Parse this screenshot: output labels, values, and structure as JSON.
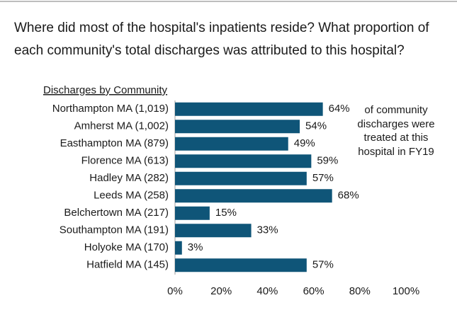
{
  "chart_data": {
    "type": "bar",
    "orientation": "horizontal",
    "title": "Where did most of the hospital's inpatients reside? What proportion of each community's total discharges was attributed to this hospital?",
    "axis_label": "Discharges by Community",
    "annotation": "of community discharges were treated at this hospital in FY19",
    "categories": [
      "Northampton MA (1,019)",
      "Amherst MA (1,002)",
      "Easthampton MA (879)",
      "Florence MA (613)",
      "Hadley MA (282)",
      "Leeds MA (258)",
      "Belchertown MA (217)",
      "Southampton MA (191)",
      "Holyoke MA (170)",
      "Hatfield MA (145)"
    ],
    "values": [
      64,
      54,
      49,
      59,
      57,
      68,
      15,
      33,
      3,
      57
    ],
    "value_labels": [
      "64%",
      "54%",
      "49%",
      "59%",
      "57%",
      "68%",
      "15%",
      "33%",
      "3%",
      "57%"
    ],
    "color": "#0f5578",
    "xlim": [
      0,
      100
    ],
    "xticks": [
      {
        "value": 0,
        "label": "0%"
      },
      {
        "value": 20,
        "label": "20%"
      },
      {
        "value": 40,
        "label": "40%"
      },
      {
        "value": 60,
        "label": "60%"
      },
      {
        "value": 80,
        "label": "80%"
      },
      {
        "value": 100,
        "label": "100%"
      }
    ],
    "grid": false
  }
}
